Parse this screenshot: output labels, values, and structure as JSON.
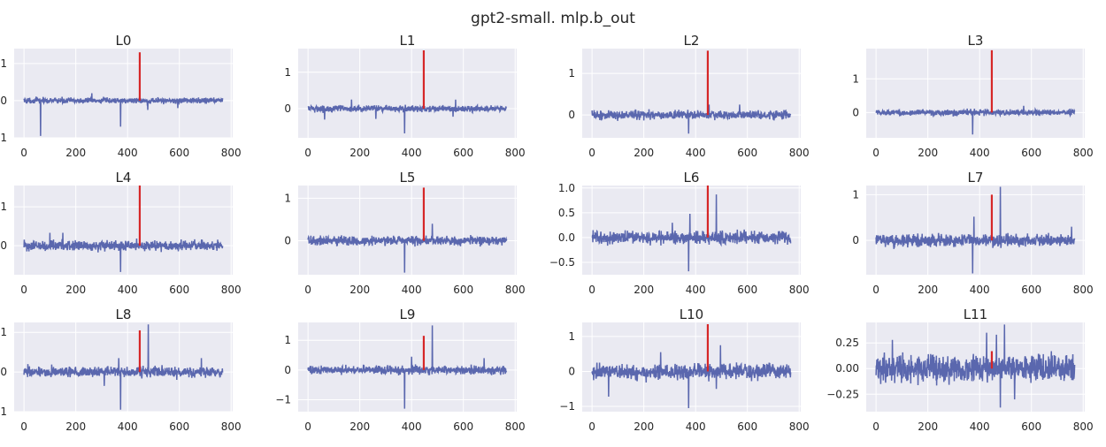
{
  "chart_data": {
    "type": "line",
    "title": "gpt2-small. mlp.b_out",
    "layout": "3x4 grid of subplots",
    "x_ticks": [
      0,
      200,
      400,
      600,
      800
    ],
    "x_range": [
      -38,
      806
    ],
    "n_points": 768,
    "series_color": "#5a67ae",
    "marker_color": "#d62728",
    "marker_index": 447,
    "grid": true,
    "panels": [
      {
        "title": "L0",
        "ylim": [
          -1.0,
          1.4
        ],
        "yticks": [
          -1,
          0,
          1
        ],
        "ytick_labels": [
          "-1",
          "0",
          "1"
        ],
        "noise": 0.07,
        "marker_value": 1.3,
        "spikes": [
          [
            64,
            -0.95
          ],
          [
            373,
            -0.7
          ],
          [
            478,
            -0.25
          ],
          [
            594,
            -0.2
          ],
          [
            262,
            0.2
          ]
        ]
      },
      {
        "title": "L1",
        "ylim": [
          -0.8,
          1.65
        ],
        "yticks": [
          0,
          1
        ],
        "ytick_labels": [
          "0",
          "1"
        ],
        "noise": 0.08,
        "marker_value": 1.6,
        "spikes": [
          [
            373,
            -0.68
          ],
          [
            64,
            -0.3
          ],
          [
            262,
            -0.28
          ],
          [
            168,
            0.25
          ],
          [
            570,
            0.25
          ],
          [
            560,
            -0.22
          ]
        ]
      },
      {
        "title": "L2",
        "ylim": [
          -0.55,
          1.6
        ],
        "yticks": [
          0,
          1
        ],
        "ytick_labels": [
          "0",
          "1"
        ],
        "noise": 0.1,
        "marker_value": 1.55,
        "spikes": [
          [
            373,
            -0.45
          ],
          [
            570,
            0.25
          ],
          [
            452,
            0.25
          ]
        ]
      },
      {
        "title": "L3",
        "ylim": [
          -0.75,
          1.9
        ],
        "yticks": [
          0,
          1
        ],
        "ytick_labels": [
          "0",
          "1"
        ],
        "noise": 0.08,
        "marker_value": 1.85,
        "spikes": [
          [
            373,
            -0.65
          ],
          [
            570,
            0.2
          ]
        ]
      },
      {
        "title": "L4",
        "ylim": [
          -0.75,
          1.55
        ],
        "yticks": [
          0,
          1
        ],
        "ytick_labels": [
          "0",
          "1"
        ],
        "noise": 0.12,
        "marker_value": 1.55,
        "spikes": [
          [
            373,
            -0.68
          ],
          [
            150,
            0.33
          ],
          [
            100,
            0.33
          ]
        ]
      },
      {
        "title": "L5",
        "ylim": [
          -0.8,
          1.3
        ],
        "yticks": [
          0,
          1
        ],
        "ytick_labels": [
          "0",
          "1"
        ],
        "noise": 0.1,
        "marker_value": 1.25,
        "spikes": [
          [
            373,
            -0.75
          ],
          [
            480,
            0.4
          ]
        ]
      },
      {
        "title": "L6",
        "ylim": [
          -0.75,
          1.05
        ],
        "yticks": [
          -0.5,
          0.0,
          0.5,
          1.0
        ],
        "ytick_labels": [
          "-0.5",
          "0.0",
          "0.5",
          "1.0"
        ],
        "noise": 0.12,
        "marker_value": 1.05,
        "spikes": [
          [
            373,
            -0.68
          ],
          [
            378,
            0.48
          ],
          [
            480,
            0.87
          ],
          [
            310,
            0.3
          ]
        ]
      },
      {
        "title": "L7",
        "ylim": [
          -0.75,
          1.2
        ],
        "yticks": [
          0,
          1
        ],
        "ytick_labels": [
          "0",
          "1"
        ],
        "noise": 0.12,
        "marker_value": 1.0,
        "spikes": [
          [
            373,
            -0.72
          ],
          [
            378,
            0.52
          ],
          [
            480,
            1.17
          ],
          [
            755,
            0.3
          ]
        ]
      },
      {
        "title": "L8",
        "ylim": [
          -1.0,
          1.25
        ],
        "yticks": [
          -1,
          0,
          1
        ],
        "ytick_labels": [
          "-1",
          "0",
          "1"
        ],
        "noise": 0.12,
        "marker_value": 1.05,
        "spikes": [
          [
            373,
            -0.95
          ],
          [
            366,
            0.35
          ],
          [
            480,
            1.2
          ],
          [
            310,
            -0.35
          ],
          [
            685,
            0.35
          ]
        ]
      },
      {
        "title": "L9",
        "ylim": [
          -1.4,
          1.6
        ],
        "yticks": [
          -1,
          0,
          1
        ],
        "ytick_labels": [
          "-1",
          "0",
          "1"
        ],
        "noise": 0.13,
        "marker_value": 1.15,
        "spikes": [
          [
            373,
            -1.3
          ],
          [
            480,
            1.5
          ],
          [
            400,
            0.45
          ],
          [
            680,
            0.4
          ]
        ]
      },
      {
        "title": "L10",
        "ylim": [
          -1.15,
          1.4
        ],
        "yticks": [
          -1,
          0,
          1
        ],
        "ytick_labels": [
          "-1",
          "0",
          "1"
        ],
        "noise": 0.2,
        "marker_value": 1.35,
        "spikes": [
          [
            373,
            -1.05
          ],
          [
            64,
            -0.72
          ],
          [
            480,
            1.1
          ],
          [
            496,
            0.75
          ],
          [
            480,
            -0.5
          ],
          [
            265,
            0.55
          ]
        ]
      },
      {
        "title": "L11",
        "ylim": [
          -0.42,
          0.45
        ],
        "yticks": [
          -0.25,
          0.0,
          0.25
        ],
        "ytick_labels": [
          "-0.25",
          "0.00",
          "0.25"
        ],
        "noise": 0.12,
        "marker_value": 0.17,
        "spikes": [
          [
            480,
            -0.38
          ],
          [
            496,
            0.43
          ],
          [
            427,
            0.35
          ],
          [
            465,
            0.33
          ],
          [
            535,
            -0.3
          ],
          [
            63,
            0.28
          ]
        ]
      }
    ]
  }
}
